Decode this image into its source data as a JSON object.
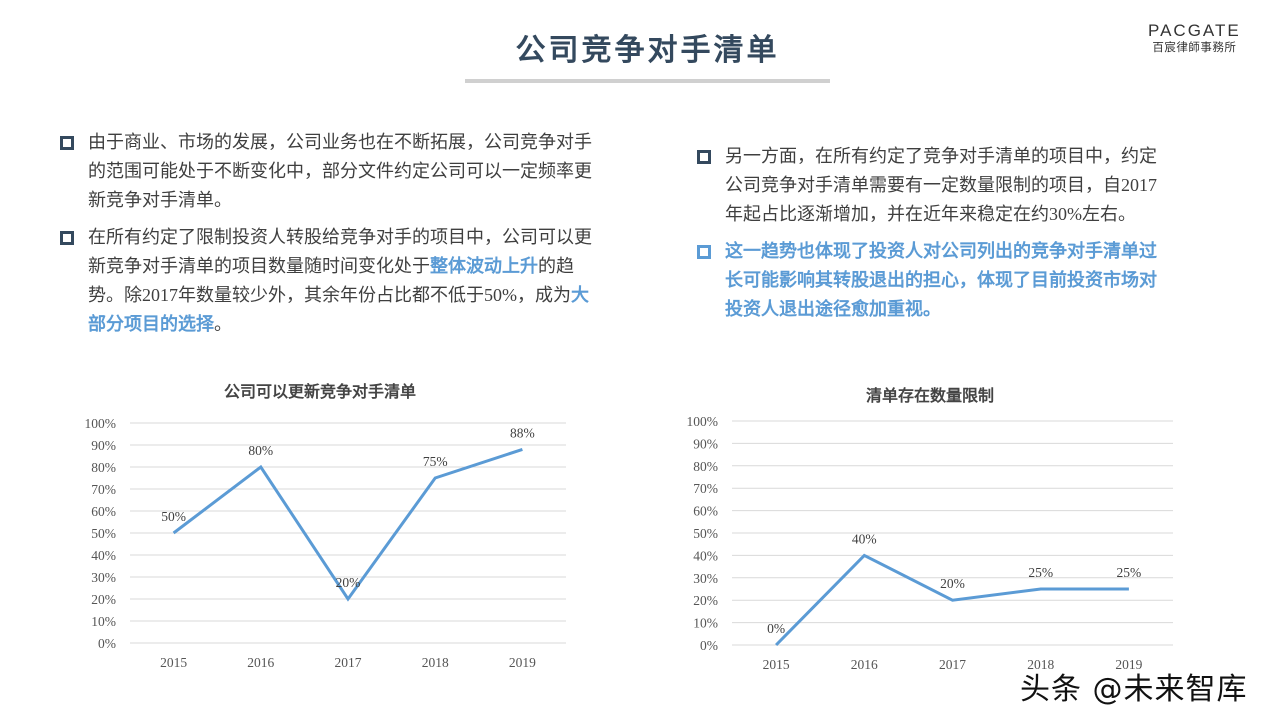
{
  "header": {
    "title": "公司竞争对手清单",
    "logo_en": "PACGATE",
    "logo_cn": "百宸律師事務所"
  },
  "left_bullets": [
    {
      "text": "由于商业、市场的发展，公司业务也在不断拓展，公司竞争对手的范围可能处于不断变化中，部分文件约定公司可以一定频率更新竞争对手清单。"
    },
    {
      "part1": "在所有约定了限制投资人转股给竞争对手的项目中，公司可以更新竞争对手清单的项目数量随时间变化处于",
      "highlight1": "整体波动上升",
      "part2": "的趋势。除",
      "year": "2017",
      "part3": "年数量较少外，其余年份占比都不低于",
      "pct": "50%",
      "part4": "，成为",
      "highlight2": "大部分项目的选择",
      "part5": "。"
    }
  ],
  "right_bullets": [
    {
      "part1": "另一方面，在所有约定了竞争对手清单的项目中，约定公司竞争对手清单需要有一定数量限制的项目，自",
      "year": "2017",
      "part2": "年起占比逐渐增加，并在近年来稳定在约",
      "pct": "30%",
      "part3": "左右。"
    },
    {
      "text": "这一趋势也体现了投资人对公司列出的竞争对手清单过长可能影响其转股退出的担心，体现了目前投资市场对投资人退出途径愈加重视。"
    }
  ],
  "watermark": "头条 @未来智库",
  "colors": {
    "title": "#34495e",
    "accent": "#5b9bd5",
    "grid": "#d9d9d9",
    "line": "#5b9bd5"
  },
  "chart_data": [
    {
      "type": "line",
      "title": "公司可以更新竞争对手清单",
      "categories": [
        "2015",
        "2016",
        "2017",
        "2018",
        "2019"
      ],
      "values": [
        50,
        80,
        20,
        75,
        88
      ],
      "data_labels": [
        "50%",
        "80%",
        "20%",
        "75%",
        "88%"
      ],
      "xlabel": "",
      "ylabel": "",
      "ylim": [
        0,
        100
      ],
      "yticks": [
        "0%",
        "10%",
        "20%",
        "30%",
        "40%",
        "50%",
        "60%",
        "70%",
        "80%",
        "90%",
        "100%"
      ],
      "grid": true,
      "legend": "none"
    },
    {
      "type": "line",
      "title": "清单存在数量限制",
      "categories": [
        "2015",
        "2016",
        "2017",
        "2018",
        "2019"
      ],
      "values": [
        0,
        40,
        20,
        25,
        25
      ],
      "data_labels": [
        "0%",
        "40%",
        "20%",
        "25%",
        "25%"
      ],
      "xlabel": "",
      "ylabel": "",
      "ylim": [
        0,
        100
      ],
      "yticks": [
        "0%",
        "10%",
        "20%",
        "30%",
        "40%",
        "50%",
        "60%",
        "70%",
        "80%",
        "90%",
        "100%"
      ],
      "grid": true,
      "legend": "none"
    }
  ]
}
